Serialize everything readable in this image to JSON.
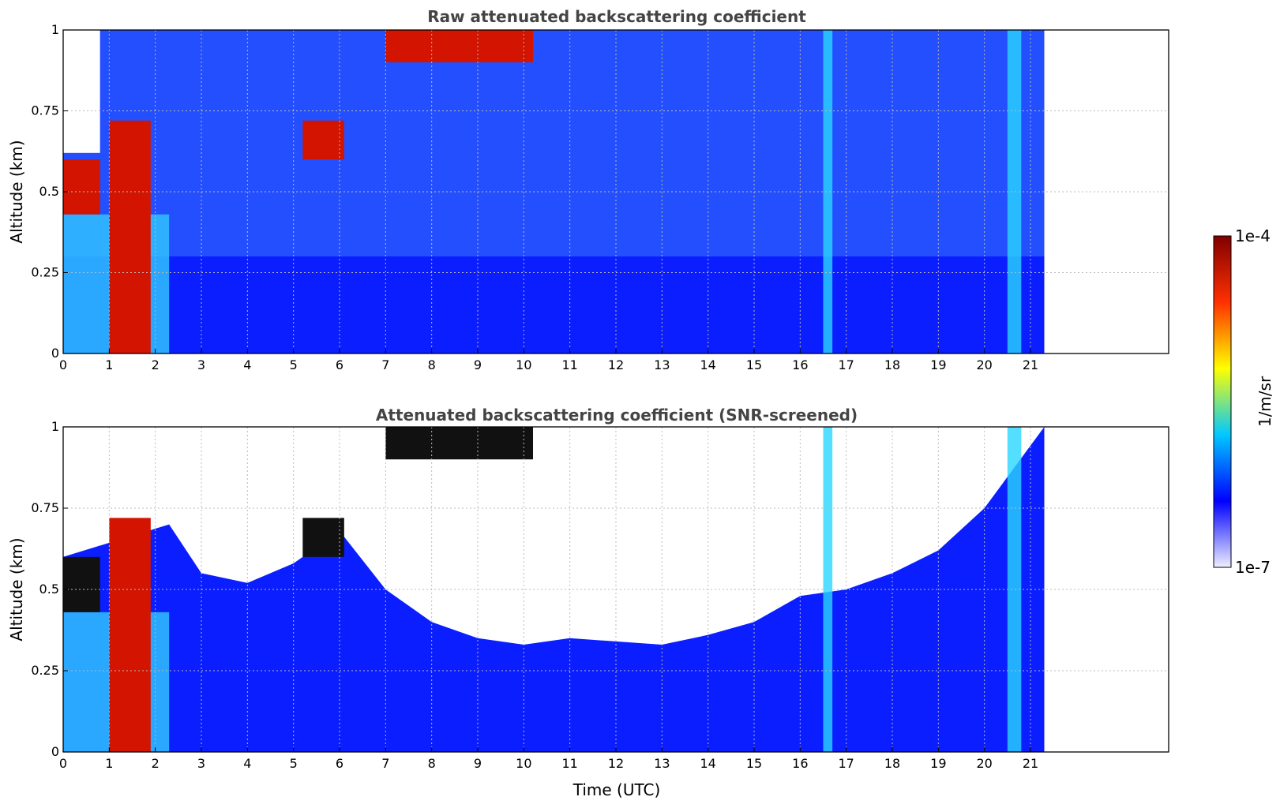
{
  "chart_data": [
    {
      "type": "heatmap",
      "title": "Raw attenuated backscattering coefficient",
      "xlabel": "",
      "ylabel": "Altitude (km)",
      "xlim": [
        0,
        24
      ],
      "ylim": [
        0,
        1
      ],
      "x_ticks": [
        0,
        1,
        2,
        3,
        4,
        5,
        6,
        7,
        8,
        9,
        10,
        11,
        12,
        13,
        14,
        15,
        16,
        17,
        18,
        19,
        20,
        21
      ],
      "y_ticks": [
        0,
        0.25,
        0.5,
        0.75,
        1
      ],
      "y_tick_labels": [
        "0",
        "0.25",
        "0.5",
        "0.75",
        "1"
      ],
      "grid": true,
      "data_end_time": 21.3,
      "features": [
        {
          "x": [
            0,
            0.8
          ],
          "y": [
            0.43,
            0.6
          ],
          "level": "high"
        },
        {
          "x": [
            1.0,
            1.9
          ],
          "y": [
            0,
            0.72
          ],
          "level": "high"
        },
        {
          "x": [
            5.2,
            6.1
          ],
          "y": [
            0.6,
            0.72
          ],
          "level": "high"
        },
        {
          "x": [
            7.0,
            10.2
          ],
          "y": [
            0.9,
            1.0
          ],
          "level": "high"
        },
        {
          "x": [
            16.5,
            16.7
          ],
          "y": [
            0,
            1
          ],
          "level": "moderate"
        },
        {
          "x": [
            20.5,
            20.8
          ],
          "y": [
            0,
            1
          ],
          "level": "moderate"
        }
      ]
    },
    {
      "type": "heatmap",
      "title": "Attenuated backscattering coefficient (SNR-screened)",
      "xlabel": "Time (UTC)",
      "ylabel": "Altitude (km)",
      "xlim": [
        0,
        24
      ],
      "ylim": [
        0,
        1
      ],
      "x_ticks": [
        0,
        1,
        2,
        3,
        4,
        5,
        6,
        7,
        8,
        9,
        10,
        11,
        12,
        13,
        14,
        15,
        16,
        17,
        18,
        19,
        20,
        21
      ],
      "y_ticks": [
        0,
        0.25,
        0.5,
        0.75,
        1
      ],
      "y_tick_labels": [
        "0",
        "0.25",
        "0.5",
        "0.75",
        "1"
      ],
      "grid": true,
      "data_end_time": 21.3,
      "screened_top_profile": {
        "time": [
          0,
          2.3,
          3,
          4,
          5,
          6,
          7,
          8,
          9,
          10,
          11,
          12,
          13,
          14,
          15,
          16,
          17,
          18,
          19,
          20,
          21.3
        ],
        "altitude": [
          0.6,
          0.7,
          0.55,
          0.52,
          0.58,
          0.68,
          0.5,
          0.4,
          0.35,
          0.33,
          0.35,
          0.34,
          0.33,
          0.36,
          0.4,
          0.48,
          0.5,
          0.55,
          0.62,
          0.75,
          1.0
        ]
      },
      "features": [
        {
          "x": [
            0,
            0.8
          ],
          "y": [
            0.43,
            0.6
          ],
          "level": "saturated"
        },
        {
          "x": [
            1.0,
            1.9
          ],
          "y": [
            0,
            0.72
          ],
          "level": "high"
        },
        {
          "x": [
            5.2,
            6.1
          ],
          "y": [
            0.6,
            0.72
          ],
          "level": "saturated"
        },
        {
          "x": [
            7.0,
            10.2
          ],
          "y": [
            0.9,
            1.0
          ],
          "level": "saturated"
        },
        {
          "x": [
            16.5,
            16.7
          ],
          "y": [
            0,
            1
          ],
          "level": "moderate"
        },
        {
          "x": [
            20.5,
            20.8
          ],
          "y": [
            0,
            1
          ],
          "level": "moderate"
        }
      ]
    }
  ],
  "colorbar": {
    "label": "1/m/sr",
    "max_label": "1e-4",
    "min_label": "1e-7",
    "colormap": "jet",
    "colors": [
      "#eeeeff",
      "#0000ff",
      "#00c8ff",
      "#ffff00",
      "#ff3000",
      "#800000"
    ]
  }
}
